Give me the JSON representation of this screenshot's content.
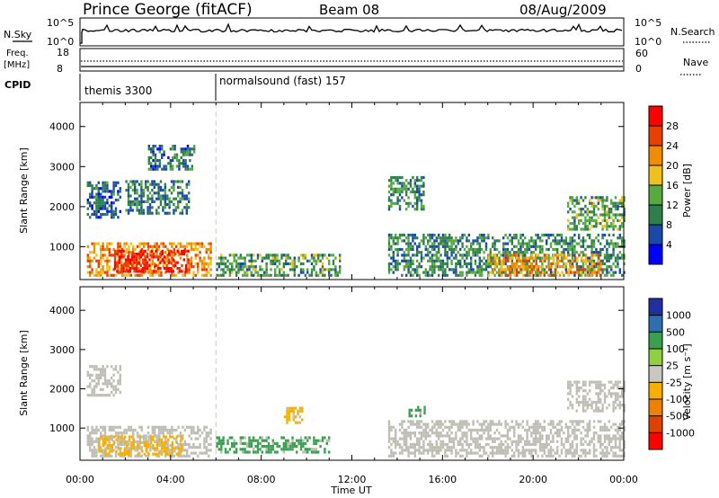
{
  "header": {
    "station": "Prince George (fitACF)",
    "beam": "Beam 08",
    "date": "08/Aug/2009"
  },
  "strip_labels": {
    "nsky": "N.Sky",
    "nsky_top": "10^5",
    "nsky_bottom": "10^0",
    "nsearch": "N.Search",
    "nsearch_top": "10^5",
    "nsearch_bottom": "10^0",
    "freq": "Freq.",
    "freq_unit": "[MHz]",
    "freq_top": "18",
    "freq_bottom": "8",
    "nave": "Nave",
    "nave_top": "60",
    "nave_bottom": "0",
    "cpid": "CPID"
  },
  "cpid_segments": [
    {
      "label": "themis 3300",
      "start_hour": 0
    },
    {
      "label": "normalsound (fast) 157",
      "start_hour": 6.0
    }
  ],
  "colors": {
    "power": [
      "#0000ff",
      "#1a4aa8",
      "#2f7f4a",
      "#55aa40",
      "#f0c020",
      "#f08c00",
      "#e84000",
      "#ff0000"
    ],
    "velocity": [
      "#2030a0",
      "#2f6fb0",
      "#3aa050",
      "#90d040",
      "#c8c8c0",
      "#f8b000",
      "#f08000",
      "#e04000",
      "#ff0000"
    ],
    "ground": "#bebeb5"
  },
  "chart_data": [
    {
      "type": "heatmap",
      "title": "",
      "xlabel": "Time UT",
      "ylabel": "Slant Range [km]",
      "xlim": [
        "00:00",
        "24:00"
      ],
      "ylim": [
        180,
        4600
      ],
      "x_ticks": [
        "00:00",
        "04:00",
        "08:00",
        "12:00",
        "16:00",
        "20:00",
        "00:00"
      ],
      "y_ticks": [
        1000,
        2000,
        3000,
        4000
      ],
      "colorbar": {
        "label": "Power [dB]",
        "ticks": [
          "4",
          "8",
          "12",
          "16",
          "20",
          "24",
          "28"
        ],
        "range": [
          0,
          30
        ]
      },
      "regions": [
        {
          "t0": 0.3,
          "t1": 5.8,
          "r0": 250,
          "r1": 1050,
          "v": 20
        },
        {
          "t0": 1.5,
          "t1": 4.8,
          "r0": 350,
          "r1": 900,
          "v": 27
        },
        {
          "t0": 6.0,
          "t1": 11.5,
          "r0": 250,
          "r1": 800,
          "v": 11
        },
        {
          "t0": 0.3,
          "t1": 1.8,
          "r0": 1700,
          "r1": 2600,
          "v": 7
        },
        {
          "t0": 2.0,
          "t1": 4.8,
          "r0": 1800,
          "r1": 2600,
          "v": 9
        },
        {
          "t0": 3.0,
          "t1": 5.0,
          "r0": 2900,
          "r1": 3500,
          "v": 8
        },
        {
          "t0": 13.6,
          "t1": 15.2,
          "r0": 1900,
          "r1": 2700,
          "v": 10
        },
        {
          "t0": 13.6,
          "t1": 24.0,
          "r0": 250,
          "r1": 1300,
          "v": 10
        },
        {
          "t0": 18.0,
          "t1": 23.0,
          "r0": 250,
          "r1": 800,
          "v": 20
        },
        {
          "t0": 21.5,
          "t1": 24.0,
          "r0": 1400,
          "r1": 2200,
          "v": 12
        }
      ]
    },
    {
      "type": "heatmap",
      "title": "",
      "xlabel": "Time UT",
      "ylabel": "Slant Range [km]",
      "xlim": [
        "00:00",
        "24:00"
      ],
      "ylim": [
        180,
        4600
      ],
      "x_ticks": [
        "00:00",
        "04:00",
        "08:00",
        "12:00",
        "16:00",
        "20:00",
        "00:00"
      ],
      "y_ticks": [
        1000,
        2000,
        3000,
        4000
      ],
      "colorbar": {
        "label": "Velocity [m s⁻¹]",
        "ticks": [
          "1000",
          "500",
          "100",
          "25",
          "-25",
          "-100",
          "-500",
          "-1000"
        ]
      },
      "regions": [
        {
          "t0": 0.3,
          "t1": 5.8,
          "r0": 250,
          "r1": 1050,
          "v": "ground"
        },
        {
          "t0": 0.8,
          "t1": 4.5,
          "r0": 300,
          "r1": 800,
          "v": -100
        },
        {
          "t0": 6.0,
          "t1": 11.0,
          "r0": 350,
          "r1": 750,
          "v": 100
        },
        {
          "t0": 0.3,
          "t1": 1.8,
          "r0": 1800,
          "r1": 2600,
          "v": "ground"
        },
        {
          "t0": 9.0,
          "t1": 9.8,
          "r0": 1100,
          "r1": 1500,
          "v": -100
        },
        {
          "t0": 14.5,
          "t1": 15.2,
          "r0": 1200,
          "r1": 1500,
          "v": 100
        },
        {
          "t0": 13.6,
          "t1": 24.0,
          "r0": 250,
          "r1": 1200,
          "v": "ground"
        },
        {
          "t0": 21.5,
          "t1": 24.0,
          "r0": 1400,
          "r1": 2200,
          "v": "ground"
        }
      ]
    }
  ]
}
